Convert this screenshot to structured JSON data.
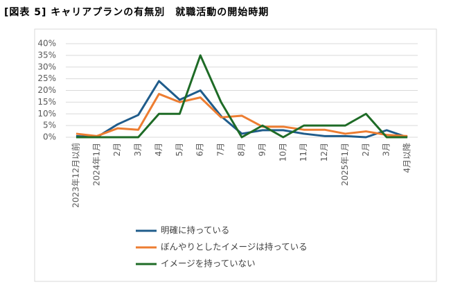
{
  "chart_data": {
    "type": "line",
    "title": "[図表 5] キャリアプランの有無別　就職活動の開始時期",
    "categories": [
      "2023年12月以前",
      "2024年1月",
      "2月",
      "3月",
      "4月",
      "5月",
      "6月",
      "7月",
      "8月",
      "9月",
      "10月",
      "11月",
      "12月",
      "2025年1月",
      "2月",
      "3月",
      "4月以降"
    ],
    "series": [
      {
        "name": "明確に持っている",
        "color": "#1f5c8b",
        "values": [
          0.5,
          0,
          5.5,
          9.5,
          24,
          16,
          20,
          9,
          1.5,
          3,
          3,
          1.5,
          0.5,
          0.5,
          0,
          3,
          0
        ]
      },
      {
        "name": "ぼんやりとしたイメージは持っている",
        "color": "#ed7d31",
        "values": [
          1.5,
          0.5,
          3.8,
          3.2,
          18.5,
          15,
          17,
          8.5,
          9.2,
          4.5,
          4.5,
          3.2,
          3.2,
          1.5,
          2.5,
          1,
          0.5
        ]
      },
      {
        "name": "イメージを持っていない",
        "color": "#1e6b26",
        "values": [
          0,
          0,
          0,
          0,
          10,
          10,
          35,
          15,
          0,
          5,
          0,
          5,
          5,
          5,
          10,
          0,
          0
        ]
      }
    ],
    "ylim": [
      0,
      40
    ],
    "yticks": [
      {
        "value": 0,
        "label": "0%"
      },
      {
        "value": 5,
        "label": "5%"
      },
      {
        "value": 10,
        "label": "10%"
      },
      {
        "value": 15,
        "label": "15%"
      },
      {
        "value": 20,
        "label": "20%"
      },
      {
        "value": 25,
        "label": "25%"
      },
      {
        "value": 30,
        "label": "30%"
      },
      {
        "value": 35,
        "label": "35%"
      },
      {
        "value": 40,
        "label": "40%"
      }
    ],
    "grid": true
  }
}
